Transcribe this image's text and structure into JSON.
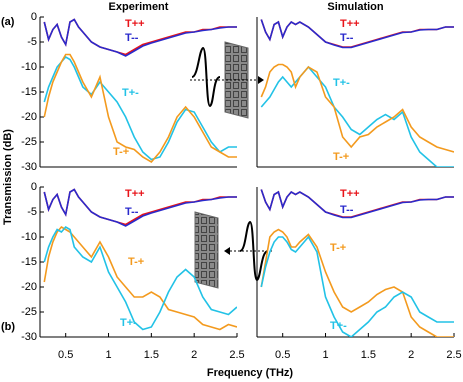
{
  "xlabel": "Frequency (THz)",
  "ylabel": "Transmission (dB)",
  "chart_data": [
    {
      "type": "line",
      "title": "Experiment",
      "panel_label": "(a)",
      "x": [
        0.25,
        0.3,
        0.35,
        0.4,
        0.45,
        0.5,
        0.55,
        0.6,
        0.65,
        0.7,
        0.8,
        0.9,
        1.0,
        1.1,
        1.2,
        1.3,
        1.4,
        1.5,
        1.6,
        1.7,
        1.8,
        1.9,
        2.0,
        2.1,
        2.2,
        2.3,
        2.4,
        2.5
      ],
      "xlim": [
        0.2,
        2.5
      ],
      "ylim": [
        -30,
        0
      ],
      "yticks": [
        0,
        -5,
        -10,
        -15,
        -20,
        -25,
        -30
      ],
      "series": [
        {
          "name": "T++",
          "color": "#e8141a",
          "values": [
            -1,
            -4.5,
            -2.5,
            -1.5,
            -4,
            -5.5,
            -1,
            -0.5,
            -2,
            -3,
            -5,
            -6,
            -6.5,
            -7,
            -7.5,
            -6.5,
            -5.5,
            -5,
            -4.5,
            -4,
            -3.5,
            -3,
            -3,
            -2.5,
            -2.5,
            -2,
            -2,
            -2
          ]
        },
        {
          "name": "T--",
          "color": "#2a2acc",
          "values": [
            -1,
            -4.5,
            -2.5,
            -1.5,
            -4,
            -5.5,
            -1,
            -0.5,
            -2,
            -3,
            -5,
            -6,
            -6.5,
            -7,
            -7.8,
            -6.8,
            -5.8,
            -5.2,
            -4.7,
            -4.2,
            -3.7,
            -3.2,
            -3,
            -2.7,
            -2.5,
            -2.2,
            -2,
            -2
          ]
        },
        {
          "name": "T+-",
          "color": "#22c2e6",
          "values": [
            -17,
            -14,
            -12,
            -10,
            -9,
            -8,
            -8.5,
            -10,
            -12,
            -14,
            -15.5,
            -13,
            -15,
            -17,
            -20,
            -24,
            -27,
            -28.5,
            -28,
            -25,
            -21,
            -18.5,
            -19,
            -22,
            -25,
            -27,
            -26,
            -26
          ]
        },
        {
          "name": "T-+",
          "color": "#f39a1e",
          "values": [
            -20,
            -16,
            -13,
            -11,
            -9,
            -7.5,
            -7.5,
            -9,
            -11,
            -13,
            -16,
            -12,
            -20,
            -25,
            -26,
            -26.5,
            -28,
            -29,
            -27,
            -24,
            -20,
            -18,
            -20,
            -23,
            -26,
            -27,
            -28,
            -28
          ]
        }
      ]
    },
    {
      "type": "line",
      "title": "Simulation",
      "x": [
        0.25,
        0.3,
        0.35,
        0.4,
        0.45,
        0.5,
        0.55,
        0.6,
        0.65,
        0.7,
        0.8,
        0.9,
        1.0,
        1.1,
        1.2,
        1.3,
        1.4,
        1.5,
        1.6,
        1.7,
        1.8,
        1.9,
        2.0,
        2.1,
        2.2,
        2.3,
        2.4,
        2.5
      ],
      "xlim": [
        0.2,
        2.5
      ],
      "ylim": [
        -30,
        0
      ],
      "series": [
        {
          "name": "T++",
          "color": "#e8141a",
          "values": [
            -0.5,
            -3,
            -4.5,
            -1.5,
            -1,
            -4,
            -2,
            -1,
            -1.5,
            -1,
            -2,
            -3.5,
            -5,
            -5.5,
            -6,
            -6,
            -5.5,
            -5,
            -4.5,
            -4,
            -3.5,
            -3,
            -3,
            -2.5,
            -2.5,
            -2.5,
            -2,
            -2
          ]
        },
        {
          "name": "T--",
          "color": "#2a2acc",
          "values": [
            -0.5,
            -3,
            -4.5,
            -1.5,
            -1,
            -4,
            -2,
            -1,
            -1.5,
            -1,
            -2,
            -3.5,
            -5,
            -5.6,
            -6.1,
            -6.1,
            -5.6,
            -5.1,
            -4.6,
            -4.1,
            -3.6,
            -3.1,
            -3,
            -2.6,
            -2.5,
            -2.5,
            -2,
            -2
          ]
        },
        {
          "name": "T+-",
          "color": "#22c2e6",
          "values": [
            -18,
            -17,
            -16,
            -14.5,
            -13,
            -12,
            -13,
            -14,
            -13,
            -12,
            -10,
            -12,
            -14,
            -18,
            -20,
            -22.5,
            -23.5,
            -22,
            -20.5,
            -19.5,
            -20.5,
            -19,
            -24,
            -27,
            -28.5,
            -30,
            -30,
            -30
          ]
        },
        {
          "name": "T-+",
          "color": "#f39a1e",
          "values": [
            -16,
            -14,
            -11,
            -10,
            -9.5,
            -9.5,
            -10,
            -11,
            -14,
            -12,
            -10,
            -11,
            -16,
            -18,
            -24,
            -26,
            -24,
            -23.5,
            -22,
            -21,
            -20,
            -18.5,
            -22,
            -24,
            -25,
            -26,
            -26.5,
            -27
          ]
        }
      ]
    },
    {
      "type": "line",
      "panel_label": "(b)",
      "x": [
        0.25,
        0.3,
        0.35,
        0.4,
        0.45,
        0.5,
        0.55,
        0.6,
        0.65,
        0.7,
        0.8,
        0.9,
        1.0,
        1.1,
        1.2,
        1.3,
        1.4,
        1.5,
        1.6,
        1.7,
        1.8,
        1.9,
        2.0,
        2.1,
        2.2,
        2.3,
        2.4,
        2.5
      ],
      "xlim": [
        0.2,
        2.5
      ],
      "ylim": [
        -30,
        0
      ],
      "yticks": [
        0,
        -5,
        -10,
        -15,
        -20,
        -25,
        -30
      ],
      "xticks": [
        0.5,
        1,
        1.5,
        2,
        2.5
      ],
      "series": [
        {
          "name": "T++",
          "color": "#e8141a",
          "values": [
            -1,
            -4.5,
            -2.5,
            -1.5,
            -4,
            -5.5,
            -1,
            -0.5,
            -2,
            -3,
            -5,
            -6,
            -6.5,
            -7,
            -7.5,
            -6.5,
            -5.5,
            -5,
            -4.5,
            -4,
            -3.5,
            -3,
            -3,
            -2.5,
            -2.5,
            -2,
            -2,
            -2
          ]
        },
        {
          "name": "T--",
          "color": "#2a2acc",
          "values": [
            -1,
            -4.5,
            -2.5,
            -1.5,
            -4,
            -5.5,
            -1,
            -0.5,
            -2,
            -3,
            -5,
            -6,
            -6.5,
            -7,
            -7.8,
            -6.8,
            -5.8,
            -5.2,
            -4.7,
            -4.2,
            -3.7,
            -3.2,
            -3,
            -2.7,
            -2.5,
            -2.2,
            -2,
            -2
          ]
        },
        {
          "name": "T-+",
          "color": "#f39a1e",
          "values": [
            -19,
            -14,
            -11,
            -9,
            -8,
            -8.5,
            -9,
            -10,
            -11,
            -12,
            -14,
            -11,
            -14,
            -18,
            -20,
            -22,
            -22,
            -21,
            -22,
            -24.5,
            -25,
            -25.5,
            -26,
            -27.5,
            -28,
            -28.5,
            -27.5,
            -28
          ]
        },
        {
          "name": "T+-",
          "color": "#22c2e6",
          "values": [
            -15,
            -12,
            -10,
            -8.5,
            -9,
            -8,
            -8.5,
            -12,
            -13,
            -14,
            -15,
            -12,
            -17,
            -20,
            -23,
            -27,
            -28.5,
            -28,
            -25,
            -21,
            -18,
            -16.5,
            -18,
            -22,
            -24.5,
            -25,
            -25.5,
            -24
          ]
        }
      ]
    },
    {
      "type": "line",
      "x": [
        0.25,
        0.3,
        0.35,
        0.4,
        0.45,
        0.5,
        0.55,
        0.6,
        0.65,
        0.7,
        0.8,
        0.9,
        1.0,
        1.1,
        1.2,
        1.3,
        1.4,
        1.5,
        1.6,
        1.7,
        1.8,
        1.9,
        2.0,
        2.1,
        2.2,
        2.3,
        2.4,
        2.5
      ],
      "xlim": [
        0.2,
        2.5
      ],
      "ylim": [
        -30,
        0
      ],
      "xticks": [
        0.5,
        1,
        1.5,
        2,
        2.5
      ],
      "series": [
        {
          "name": "T++",
          "color": "#e8141a",
          "values": [
            -0.5,
            -3,
            -4.5,
            -1.5,
            -1,
            -4,
            -2,
            -1,
            -1.5,
            -1,
            -2,
            -3.5,
            -5,
            -5.5,
            -6,
            -6,
            -5.5,
            -5,
            -4.5,
            -4,
            -3.5,
            -3,
            -3,
            -2.5,
            -2.5,
            -2.5,
            -2,
            -2
          ]
        },
        {
          "name": "T--",
          "color": "#2a2acc",
          "values": [
            -0.5,
            -3,
            -4.5,
            -1.5,
            -1,
            -4,
            -2,
            -1,
            -1.5,
            -1,
            -2,
            -3.5,
            -5,
            -5.6,
            -6.1,
            -6.1,
            -5.6,
            -5.1,
            -4.6,
            -4.1,
            -3.6,
            -3.1,
            -3,
            -2.6,
            -2.5,
            -2.5,
            -2,
            -2
          ]
        },
        {
          "name": "T-+",
          "color": "#f39a1e",
          "values": [
            -20,
            -15,
            -10,
            -9,
            -8.5,
            -9,
            -10,
            -12,
            -12,
            -11,
            -9.5,
            -12,
            -17,
            -21,
            -24,
            -25,
            -24,
            -23,
            -21.5,
            -20.5,
            -20,
            -21,
            -26,
            -28,
            -29,
            -30,
            -30,
            -30
          ]
        },
        {
          "name": "T+-",
          "color": "#22c2e6",
          "values": [
            -20,
            -16,
            -13,
            -11,
            -10,
            -10,
            -11,
            -12.5,
            -13,
            -12,
            -10,
            -13,
            -22,
            -26,
            -29,
            -30,
            -28.5,
            -27,
            -25,
            -24,
            -22,
            -21,
            -22,
            -25,
            -26,
            -27,
            -27,
            -27
          ]
        }
      ]
    }
  ]
}
